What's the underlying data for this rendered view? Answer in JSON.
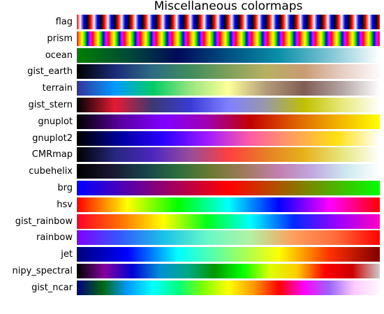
{
  "chart_data": {
    "type": "heatmap",
    "title": "Miscellaneous colormaps",
    "colormaps": [
      {
        "name": "flag"
      },
      {
        "name": "prism"
      },
      {
        "name": "ocean",
        "stops": [
          "#008000",
          "#004a36",
          "#000a5a",
          "#005081",
          "#0a8fa8",
          "#7ec4d4",
          "#ffffff"
        ]
      },
      {
        "name": "gist_earth",
        "stops": [
          "#000000",
          "#1a2a78",
          "#2e6c82",
          "#3f8d5c",
          "#7ea05a",
          "#b8b063",
          "#c99b74",
          "#e6cdc4",
          "#fdfbfb"
        ]
      },
      {
        "name": "terrain",
        "stops": [
          "#333399",
          "#0099ff",
          "#00cc66",
          "#99e57f",
          "#ffff99",
          "#b39b79",
          "#805c54",
          "#b3a5a3",
          "#ffffff"
        ]
      },
      {
        "name": "gist_stern",
        "stops": [
          "#000000",
          "#e61a33",
          "#3a3a72",
          "#3a3ad8",
          "#8080ff",
          "#9999a6",
          "#c0c000",
          "#e8e87c",
          "#ffffff"
        ]
      },
      {
        "name": "gnuplot",
        "stops": [
          "#000000",
          "#5a00a0",
          "#8000ff",
          "#a000b0",
          "#c20000",
          "#dc5c00",
          "#f0b000",
          "#ffff00"
        ]
      },
      {
        "name": "gnuplot2",
        "stops": [
          "#000000",
          "#0000a0",
          "#2a00ff",
          "#a018ff",
          "#ff5ca4",
          "#ffa05a",
          "#ffe010",
          "#ffffff"
        ]
      },
      {
        "name": "CMRmap",
        "stops": [
          "#000000",
          "#26267f",
          "#4c26bf",
          "#994c99",
          "#ff3f3f",
          "#e57f26",
          "#e6b21a",
          "#e6e680",
          "#ffffff"
        ]
      },
      {
        "name": "cubehelix",
        "stops": [
          "#000000",
          "#1a1530",
          "#16424a",
          "#2c6e3c",
          "#6d7a31",
          "#a27a5d",
          "#c27fb0",
          "#c0a9e0",
          "#cde8ef",
          "#ffffff"
        ]
      },
      {
        "name": "brg",
        "stops": [
          "#0000ff",
          "#800080",
          "#ff0000",
          "#808000",
          "#00ff00"
        ]
      },
      {
        "name": "hsv",
        "stops": [
          "#ff0000",
          "#ffff00",
          "#00ff00",
          "#00ffff",
          "#0000ff",
          "#ff00ff",
          "#ff0000"
        ]
      },
      {
        "name": "gist_rainbow",
        "stops": [
          "#ff0029",
          "#ff6f00",
          "#ffff00",
          "#00ff1a",
          "#00ffff",
          "#0029ff",
          "#9900ff",
          "#ff00bf"
        ]
      },
      {
        "name": "rainbow",
        "stops": [
          "#8000ff",
          "#3359fa",
          "#19c2e7",
          "#66f9c7",
          "#b2f2a3",
          "#ff9e5e",
          "#ff6a38",
          "#ff0000"
        ]
      },
      {
        "name": "jet",
        "stops": [
          "#00007f",
          "#0000ff",
          "#00ffff",
          "#7fff7f",
          "#ffff00",
          "#ff3000",
          "#7f0000"
        ]
      },
      {
        "name": "nipy_spectral",
        "stops": [
          "#000000",
          "#8500a0",
          "#0000d5",
          "#008fd5",
          "#00aa88",
          "#009900",
          "#00ff00",
          "#ddff00",
          "#ffcc00",
          "#ff0000",
          "#cc0000",
          "#cccccc"
        ]
      },
      {
        "name": "gist_ncar",
        "stops": [
          "#000080",
          "#00660f",
          "#0099ff",
          "#00ffff",
          "#00ff7f",
          "#7fff00",
          "#ffff00",
          "#ff9900",
          "#ff0000",
          "#ff00ff",
          "#9966ff",
          "#ffccff",
          "#fef8fe"
        ]
      }
    ]
  }
}
